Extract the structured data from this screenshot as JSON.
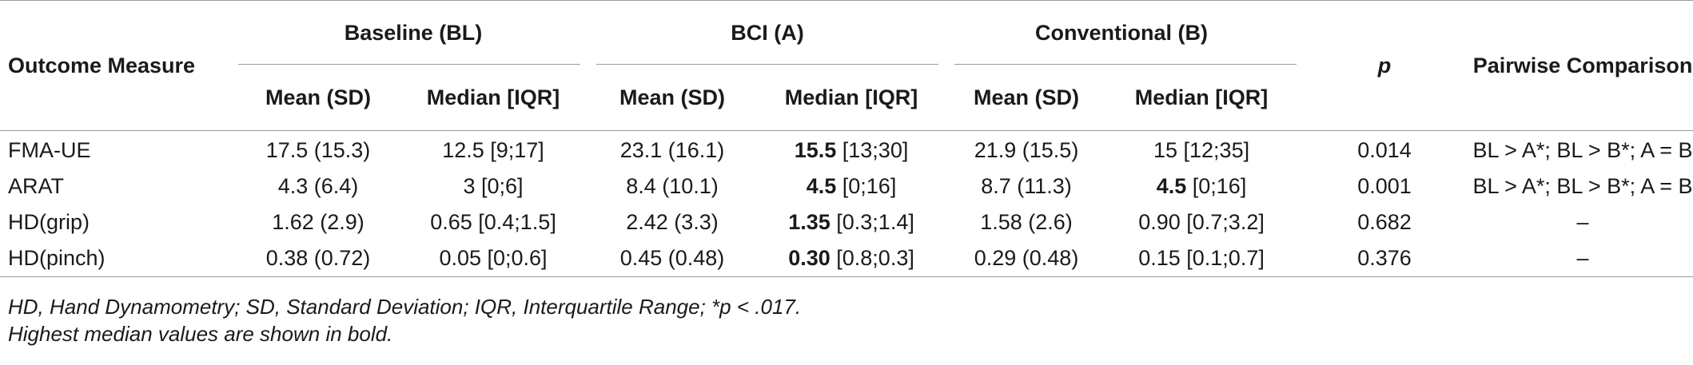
{
  "table": {
    "col_outcome": "Outcome Measure",
    "groups": [
      {
        "label": "Baseline (BL)"
      },
      {
        "label": "BCI (A)"
      },
      {
        "label": "Conventional (B)"
      }
    ],
    "col_p": "p",
    "col_pairwise": "Pairwise Comparison",
    "sub_headers": [
      "Mean (SD)",
      "Median [IQR]",
      "Mean (SD)",
      "Median [IQR]",
      "Mean (SD)",
      "Median [IQR]"
    ],
    "rows": [
      {
        "measure": "FMA-UE",
        "bl_mean": "17.5 (15.3)",
        "bl_median": "12.5",
        "bl_iqr": " [9;17]",
        "a_mean": "23.1 (16.1)",
        "a_median": "15.5",
        "a_iqr": " [13;30]",
        "b_mean": "21.9 (15.5)",
        "b_median": "15",
        "b_iqr": " [12;35]",
        "p": "0.014",
        "pairwise": "BL > A*; BL > B*; A = B"
      },
      {
        "measure": "ARAT",
        "bl_mean": "4.3 (6.4)",
        "bl_median": "3",
        "bl_iqr": " [0;6]",
        "a_mean": "8.4 (10.1)",
        "a_median": "4.5",
        "a_iqr": " [0;16]",
        "b_mean": "8.7 (11.3)",
        "b_median": "4.5",
        "b_iqr": " [0;16]",
        "p": "0.001",
        "pairwise": "BL > A*; BL > B*; A = B"
      },
      {
        "measure": "HD(grip)",
        "bl_mean": "1.62 (2.9)",
        "bl_median": "0.65",
        "bl_iqr": " [0.4;1.5]",
        "a_mean": "2.42 (3.3)",
        "a_median": "1.35",
        "a_iqr": " [0.3;1.4]",
        "b_mean": "1.58 (2.6)",
        "b_median": "0.90",
        "b_iqr": " [0.7;3.2]",
        "p": "0.682",
        "pairwise": "–"
      },
      {
        "measure": "HD(pinch)",
        "bl_mean": "0.38 (0.72)",
        "bl_median": "0.05",
        "bl_iqr": " [0;0.6]",
        "a_mean": "0.45 (0.48)",
        "a_median": "0.30",
        "a_iqr": " [0.8;0.3]",
        "b_mean": "0.29 (0.48)",
        "b_median": "0.15",
        "b_iqr": " [0.1;0.7]",
        "p": "0.376",
        "pairwise": "–"
      }
    ]
  },
  "notes": {
    "line1": "HD, Hand Dynamometry; SD, Standard Deviation; IQR, Interquartile Range; *p < .017.",
    "line2": "Highest median values are shown in bold."
  },
  "bold_cells": {
    "FMA-UE": [
      "a_median"
    ],
    "ARAT": [
      "a_median",
      "b_median"
    ],
    "HD(grip)": [
      "a_median"
    ],
    "HD(pinch)": [
      "a_median"
    ]
  }
}
